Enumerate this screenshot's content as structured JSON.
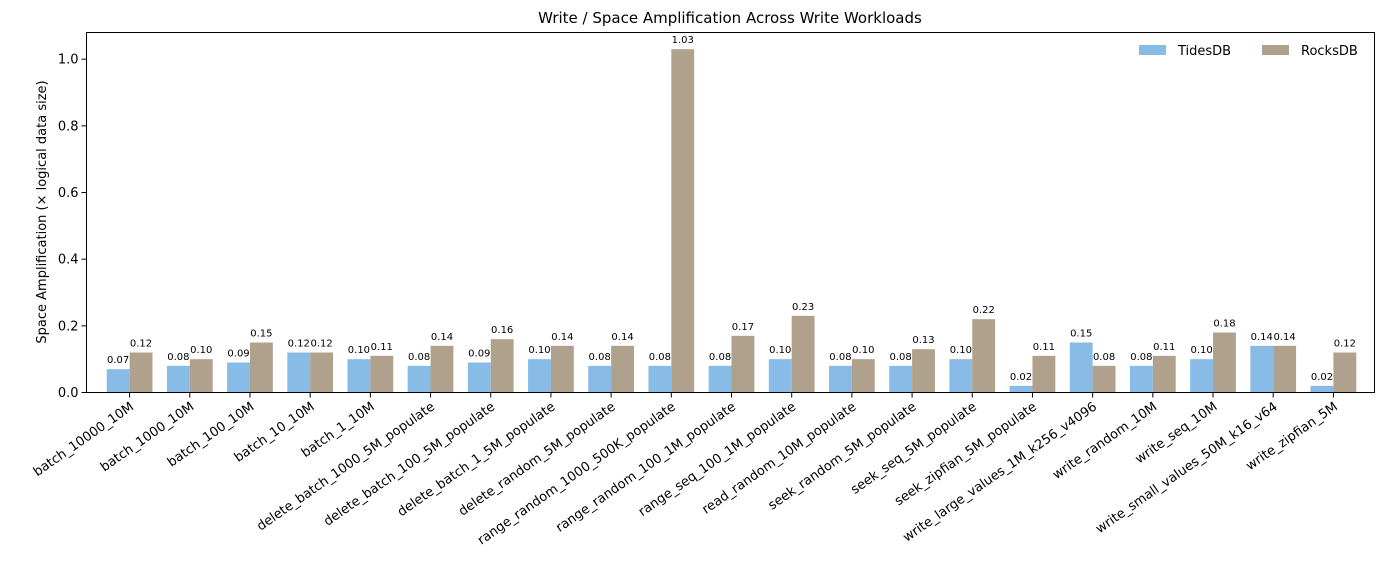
{
  "chart_data": {
    "type": "bar",
    "title": "Write / Space Amplification Across Write Workloads",
    "xlabel": "",
    "ylabel": "Space Amplification (× logical data size)",
    "ylim": [
      0,
      1.08
    ],
    "yticks": [
      "0.0",
      "0.2",
      "0.4",
      "0.6",
      "0.8",
      "1.0"
    ],
    "grid": false,
    "legend_position": "top-right",
    "categories": [
      "batch_10000_10M",
      "batch_1000_10M",
      "batch_100_10M",
      "batch_10_10M",
      "batch_1_10M",
      "delete_batch_1000_5M_populate",
      "delete_batch_100_5M_populate",
      "delete_batch_1_5M_populate",
      "delete_random_5M_populate",
      "range_random_1000_500K_populate",
      "range_random_100_1M_populate",
      "range_seq_100_1M_populate",
      "read_random_10M_populate",
      "seek_random_5M_populate",
      "seek_seq_5M_populate",
      "seek_zipfian_5M_populate",
      "write_large_values_1M_k256_v4096",
      "write_random_10M",
      "write_seq_10M",
      "write_small_values_50M_k16_v64",
      "write_zipfian_5M"
    ],
    "series": [
      {
        "name": "TidesDB",
        "color": "#88bbe6",
        "values": [
          0.07,
          0.08,
          0.09,
          0.12,
          0.1,
          0.08,
          0.09,
          0.1,
          0.08,
          0.08,
          0.08,
          0.1,
          0.08,
          0.08,
          0.1,
          0.02,
          0.15,
          0.08,
          0.1,
          0.14,
          0.02
        ],
        "labels": [
          "0.07",
          "0.08",
          "0.09",
          "0.12",
          "0.10",
          "0.08",
          "0.09",
          "0.10",
          "0.08",
          "0.08",
          "0.08",
          "0.10",
          "0.08",
          "0.08",
          "0.10",
          "0.02",
          "0.15",
          "0.08",
          "0.10",
          "0.14",
          "0.02"
        ]
      },
      {
        "name": "RocksDB",
        "color": "#b0a18c",
        "values": [
          0.12,
          0.1,
          0.15,
          0.12,
          0.11,
          0.14,
          0.16,
          0.14,
          0.14,
          1.03,
          0.17,
          0.23,
          0.1,
          0.13,
          0.22,
          0.11,
          0.08,
          0.11,
          0.18,
          0.14,
          0.12
        ],
        "labels": [
          "0.12",
          "0.10",
          "0.15",
          "0.12",
          "0.11",
          "0.14",
          "0.16",
          "0.14",
          "0.14",
          "1.03",
          "0.17",
          "0.23",
          "0.10",
          "0.13",
          "0.22",
          "0.11",
          "0.08",
          "0.11",
          "0.18",
          "0.14",
          "0.12"
        ]
      }
    ]
  }
}
